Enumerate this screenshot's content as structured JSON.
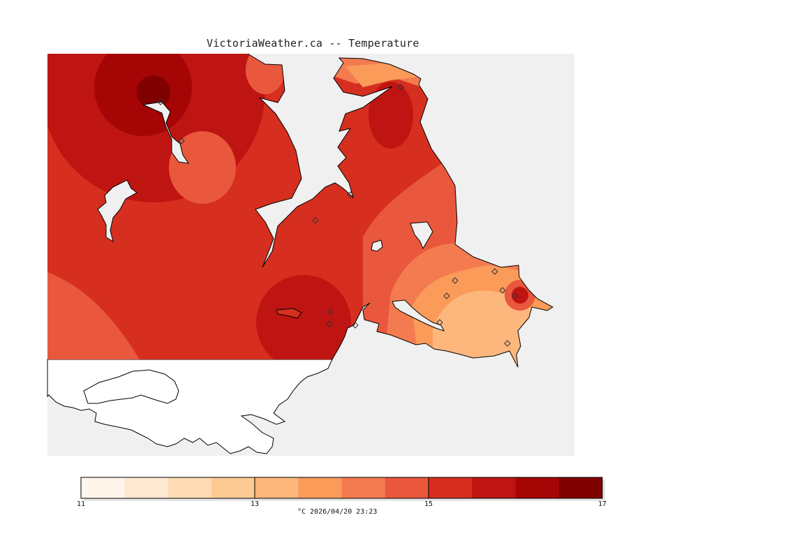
{
  "title": "VictoriaWeather.ca -- Temperature",
  "colorbar": {
    "ticks": [
      "11",
      "13",
      "15",
      "17"
    ],
    "caption": "°C  2026/04/20 23:23",
    "min": 11,
    "max": 17,
    "step": 0.5,
    "colors": [
      "#fff5eb",
      "#ffe9d1",
      "#fedbb3",
      "#fdc992",
      "#fdb67c",
      "#fb9b5a",
      "#f47b4f",
      "#e9573d",
      "#d62f1f",
      "#bf1512",
      "#a50505",
      "#7f0000"
    ]
  },
  "map": {
    "ocean_color": "#f0f0f0",
    "land_color": "#ffffff",
    "station_marker": "diamond-icon"
  }
}
